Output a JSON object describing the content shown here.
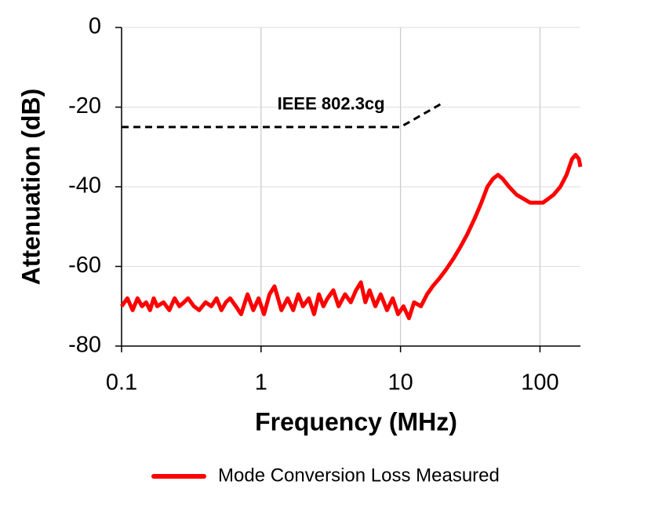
{
  "chart_data": {
    "type": "line",
    "x_label": "Frequency (MHz)",
    "y_label": "Attenuation (dB)",
    "xscale": "log",
    "xlim": [
      0.1,
      195
    ],
    "ylim": [
      -80,
      0
    ],
    "xticks": [
      0.1,
      1,
      10,
      100
    ],
    "yticks": [
      0,
      -20,
      -40,
      -60,
      -80
    ],
    "grid": true,
    "legend": "bottom",
    "series": [
      {
        "name": "Mode Conversion Loss Measured",
        "color": "#ff0000",
        "dashed": false,
        "in_legend": true,
        "x": [
          0.1,
          0.11,
          0.12,
          0.13,
          0.14,
          0.15,
          0.16,
          0.17,
          0.18,
          0.2,
          0.22,
          0.24,
          0.26,
          0.28,
          0.3,
          0.33,
          0.36,
          0.4,
          0.44,
          0.48,
          0.52,
          0.56,
          0.6,
          0.66,
          0.72,
          0.8,
          0.88,
          0.96,
          1.05,
          1.15,
          1.25,
          1.4,
          1.55,
          1.7,
          1.85,
          2,
          2.2,
          2.4,
          2.6,
          2.8,
          3,
          3.3,
          3.6,
          4,
          4.4,
          4.8,
          5.2,
          5.6,
          6,
          6.6,
          7.2,
          8,
          8.8,
          9.6,
          10.5,
          11.5,
          12.5,
          14,
          15.5,
          17,
          19,
          21,
          24,
          27,
          30,
          34,
          38,
          42,
          46,
          50,
          54,
          60,
          68,
          76,
          85,
          95,
          105,
          115,
          125,
          140,
          155,
          170,
          180,
          190,
          195
        ],
        "values": [
          -70,
          -68,
          -71,
          -68,
          -70,
          -69,
          -71,
          -68,
          -70,
          -69,
          -71,
          -68,
          -70,
          -69,
          -68,
          -70,
          -71,
          -69,
          -70,
          -68,
          -71,
          -69,
          -68,
          -70,
          -72,
          -67,
          -71,
          -68,
          -72,
          -67,
          -65,
          -71,
          -68,
          -71,
          -67,
          -70,
          -68,
          -72,
          -67,
          -70,
          -68,
          -66,
          -70,
          -67,
          -69,
          -66,
          -64,
          -69,
          -66,
          -70,
          -67,
          -71,
          -68,
          -72,
          -70,
          -73,
          -69,
          -70,
          -67,
          -65,
          -63,
          -61,
          -58,
          -55,
          -52,
          -48,
          -44,
          -40,
          -38,
          -37,
          -38,
          -40,
          -42,
          -43,
          -44,
          -44,
          -44,
          -43,
          -42,
          -40,
          -37,
          -33,
          -32,
          -33,
          -35
        ]
      },
      {
        "name": "IEEE 802.3cg",
        "color": "#000000",
        "dashed": true,
        "in_legend": false,
        "x": [
          0.1,
          10,
          20
        ],
        "values": [
          -25,
          -25,
          -19
        ]
      }
    ]
  }
}
